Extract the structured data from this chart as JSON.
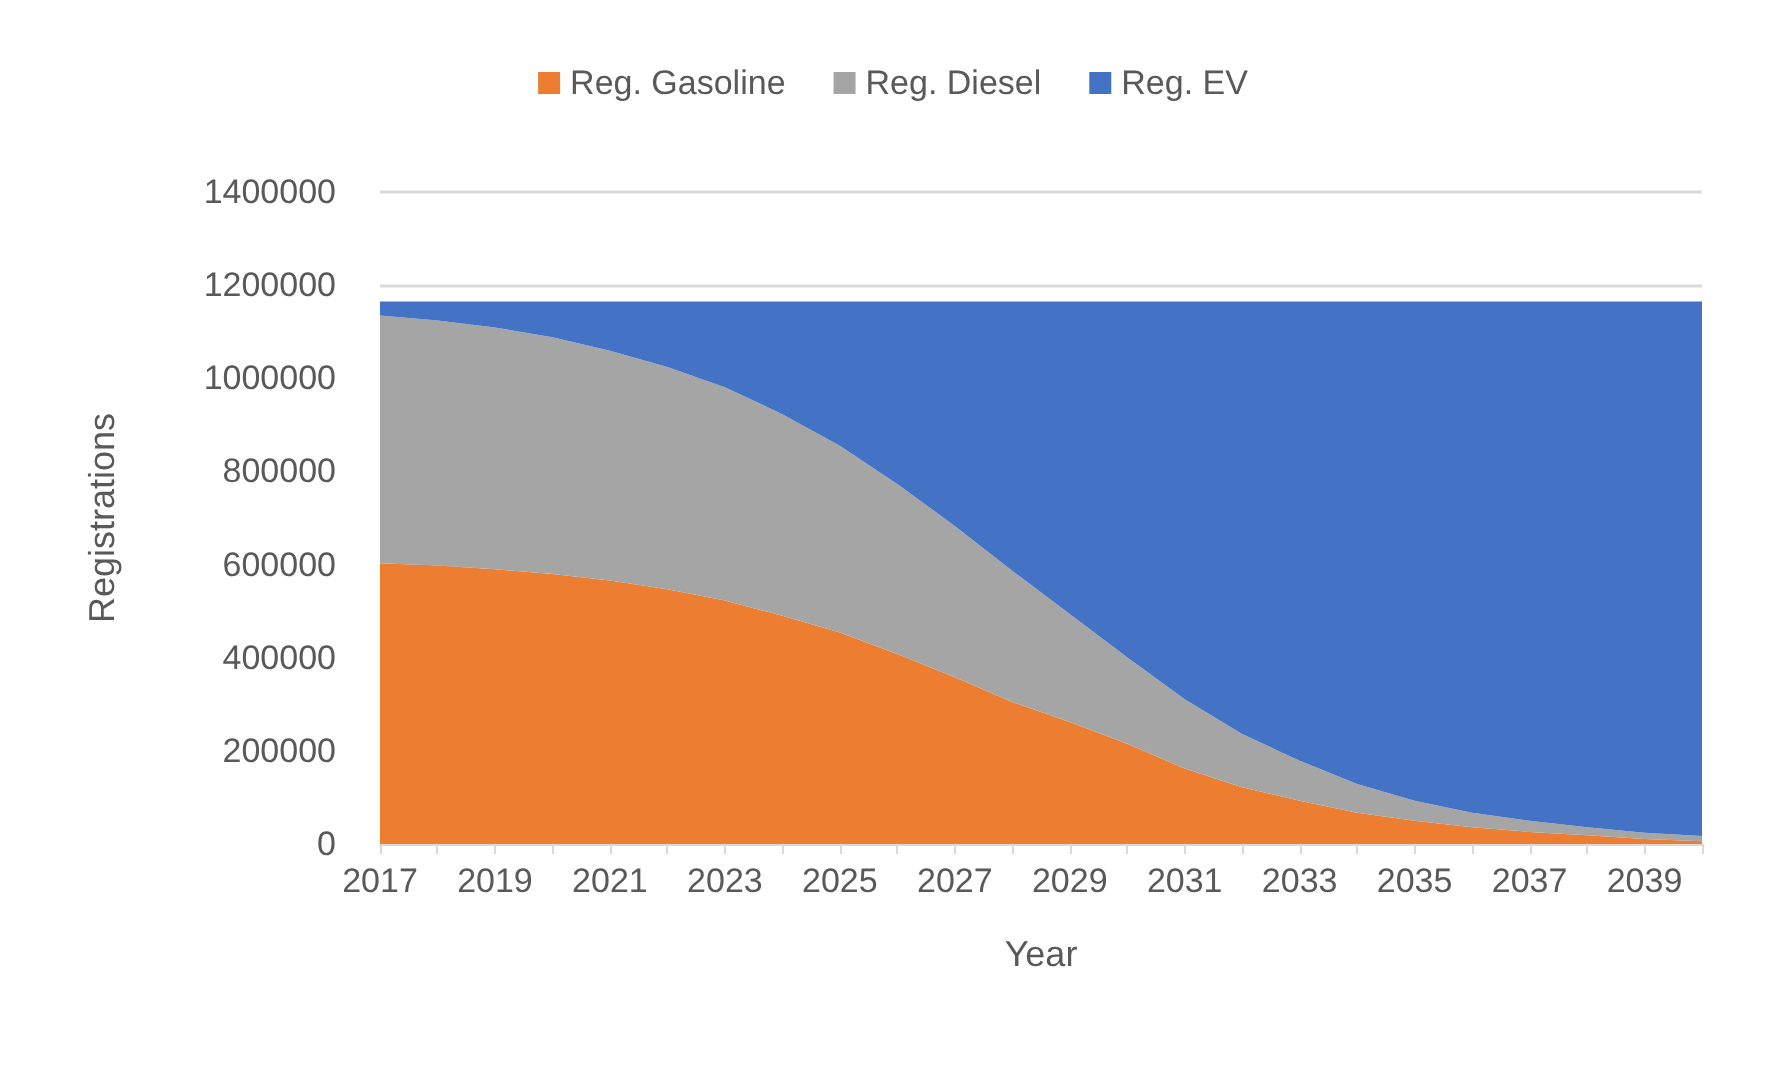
{
  "chart_data": {
    "type": "area",
    "stacked": true,
    "xlabel": "Year",
    "ylabel": "Registrations",
    "categories": [
      "2017",
      null,
      "2019",
      null,
      "2021",
      null,
      "2023",
      null,
      "2025",
      null,
      "2027",
      null,
      "2029",
      null,
      "2031",
      null,
      "2033",
      null,
      "2035",
      null,
      "2037",
      null,
      "2039",
      null
    ],
    "series": [
      {
        "name": "Reg. Gasoline",
        "color": "#ed7d31",
        "values": [
          603000,
          598000,
          590000,
          580000,
          566000,
          547000,
          523000,
          490000,
          454000,
          408000,
          358000,
          305000,
          262000,
          215000,
          162000,
          122000,
          93000,
          67000,
          50000,
          36000,
          26000,
          19000,
          11000,
          6000
        ]
      },
      {
        "name": "Reg. Diesel",
        "color": "#a5a5a5",
        "values": [
          532000,
          526000,
          519000,
          508000,
          493000,
          477000,
          458000,
          433000,
          401000,
          365000,
          325000,
          282000,
          232000,
          186000,
          149000,
          114000,
          86000,
          62000,
          43000,
          31000,
          24000,
          17000,
          13000,
          11000
        ]
      },
      {
        "name": "Reg. EV",
        "color": "#4472c4",
        "values": [
          30000,
          41000,
          56000,
          77000,
          106000,
          141000,
          184000,
          242000,
          310000,
          392000,
          482000,
          578000,
          671000,
          764000,
          854000,
          929000,
          986000,
          1036000,
          1072000,
          1098000,
          1115000,
          1129000,
          1141000,
          1148000
        ]
      }
    ],
    "ylim": [
      0,
      1400000
    ],
    "yticks": [
      0,
      200000,
      400000,
      600000,
      800000,
      1000000,
      1200000,
      1400000
    ],
    "grid": "y",
    "legend": "top"
  }
}
